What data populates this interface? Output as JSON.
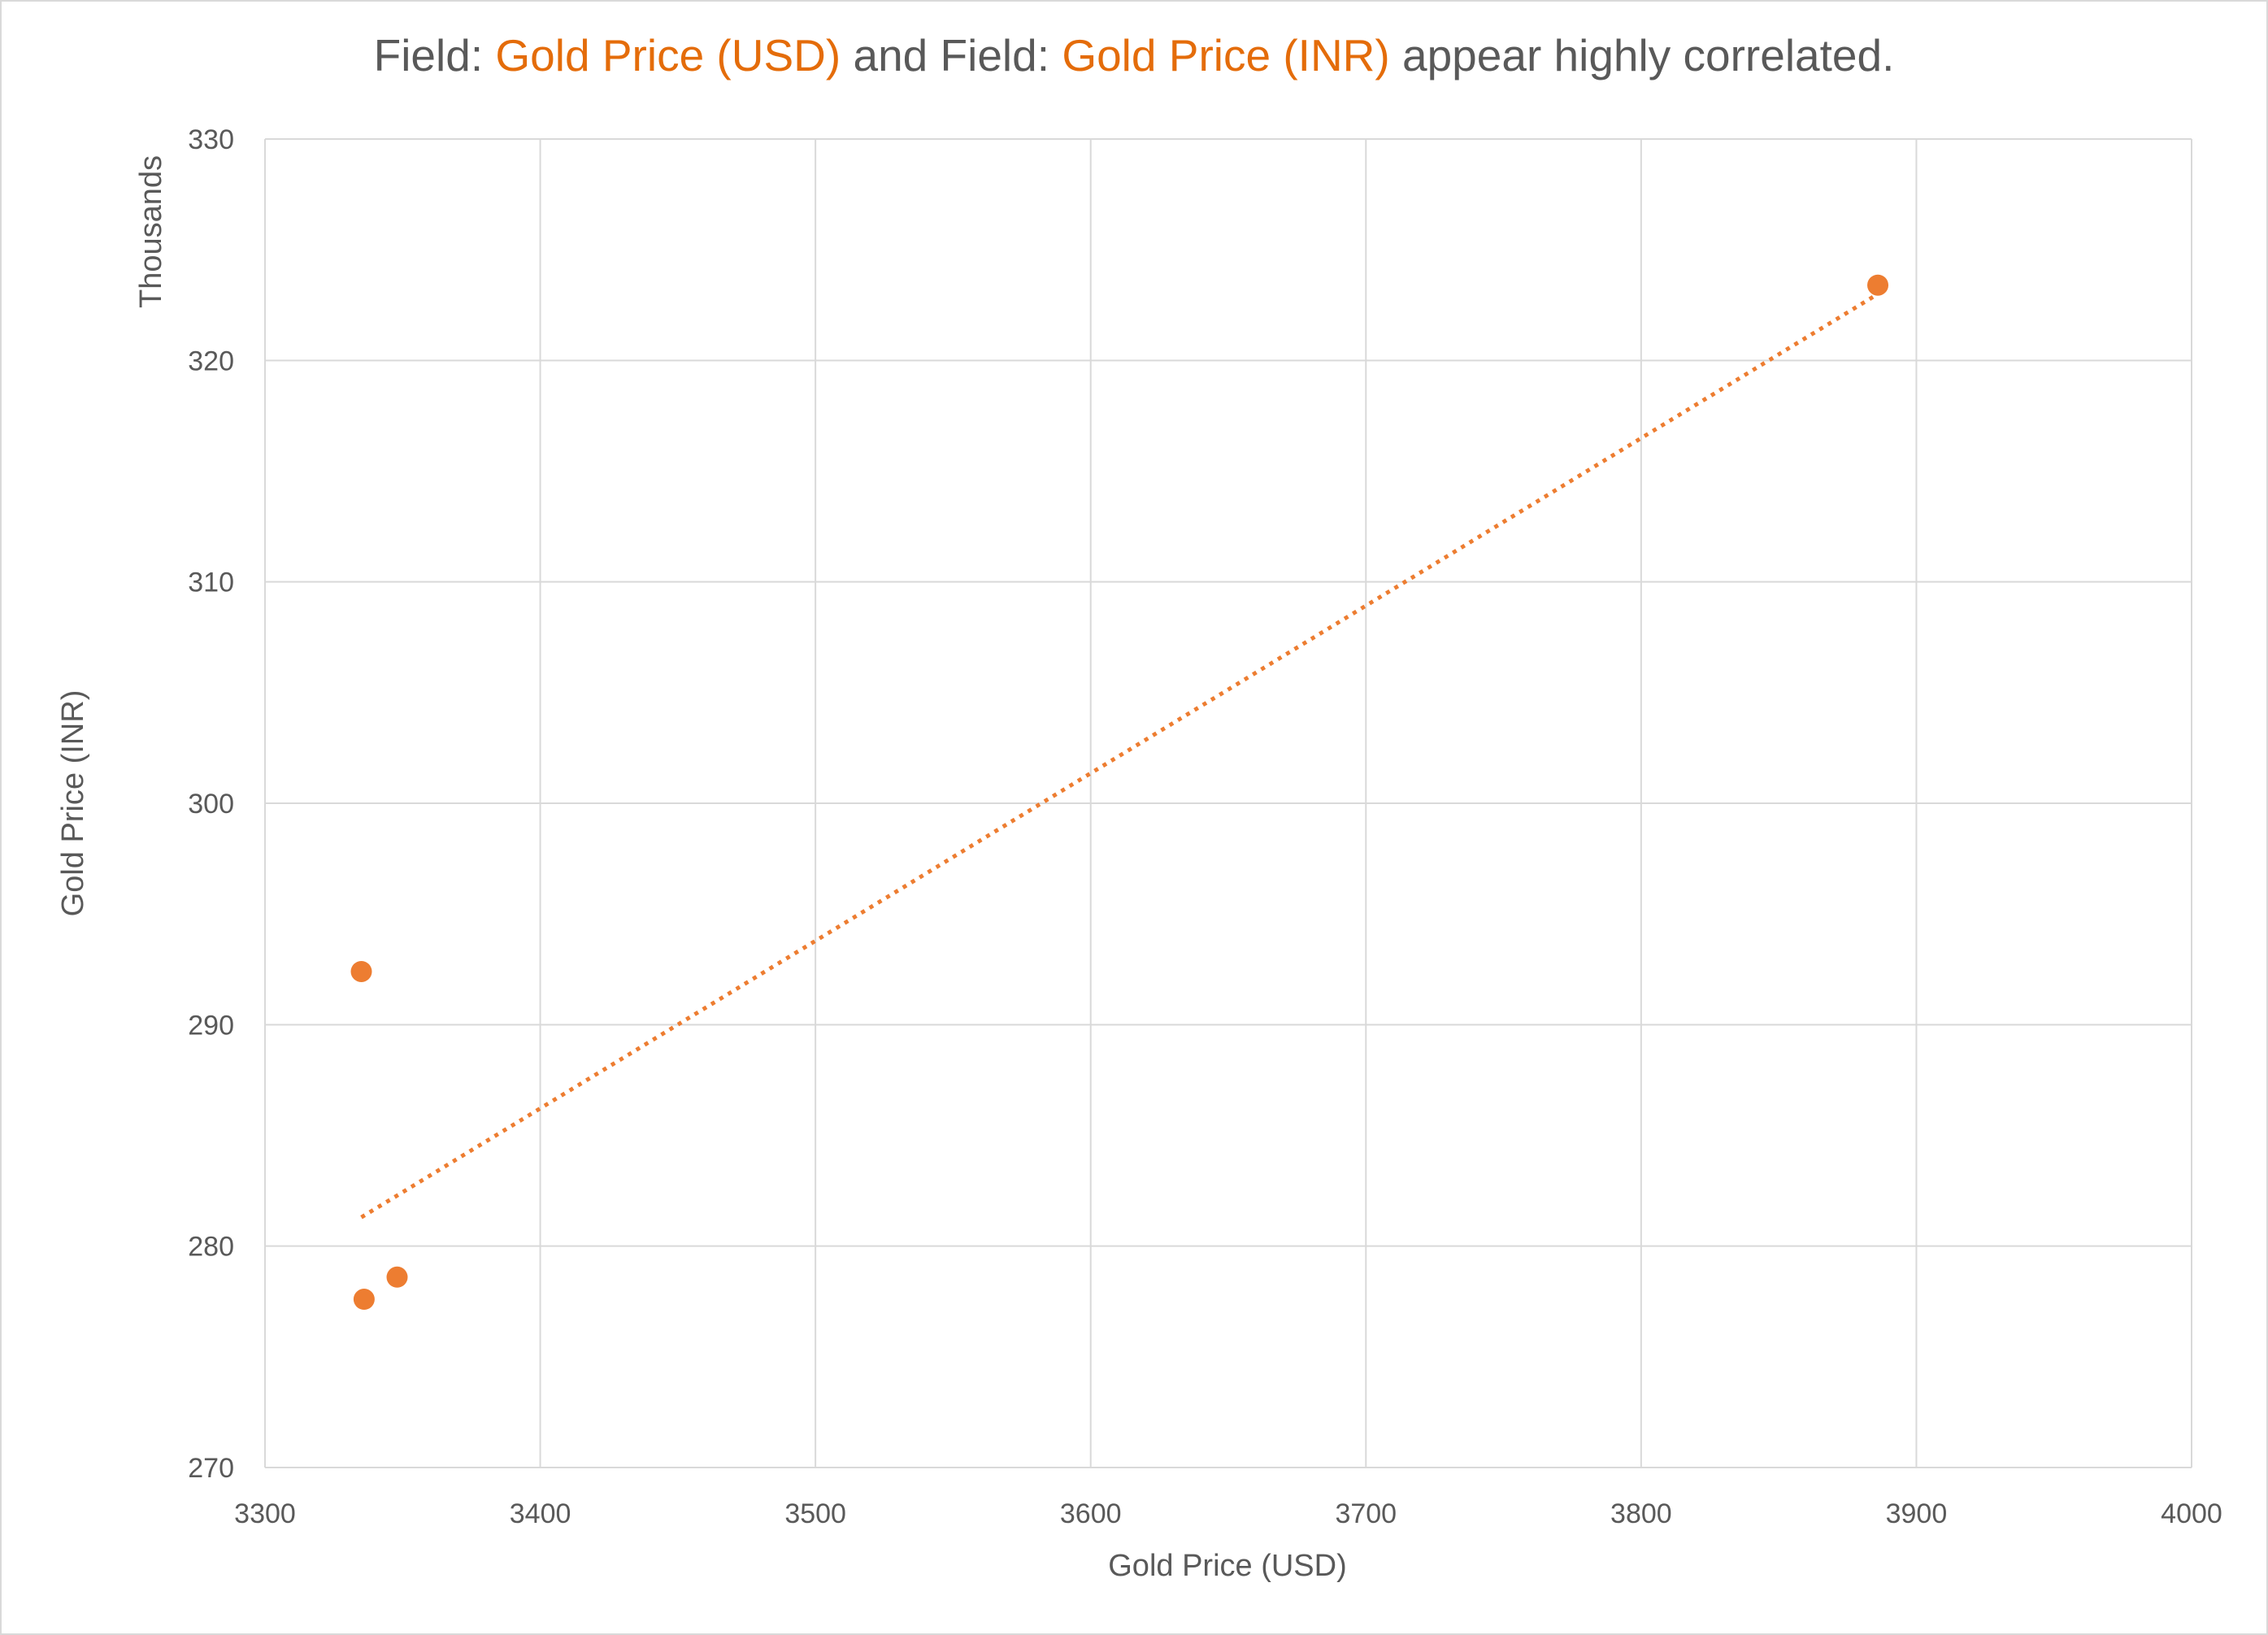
{
  "chart_data": {
    "type": "scatter",
    "title": {
      "p1": "Field: ",
      "f1": "Gold Price (USD)",
      "p2": " and Field: ",
      "f2": "Gold Price (INR)",
      "p3": " appear highly correlated."
    },
    "xlabel": "Gold Price (USD)",
    "ylabel": "Gold Price (INR)",
    "y_display_units": "Thousands",
    "xlim": [
      3300,
      4000
    ],
    "ylim": [
      270,
      330
    ],
    "x_ticks": [
      3300,
      3400,
      3500,
      3600,
      3700,
      3800,
      3900,
      4000
    ],
    "y_ticks": [
      270,
      280,
      290,
      300,
      310,
      320,
      330
    ],
    "grid": true,
    "legend": "none",
    "series": [
      {
        "points": [
          {
            "x": 3335,
            "y": 292.4
          },
          {
            "x": 3336,
            "y": 277.6
          },
          {
            "x": 3348,
            "y": 278.6
          },
          {
            "x": 3886,
            "y": 323.4
          }
        ],
        "color": "#ed7d31"
      }
    ],
    "trendline": {
      "type": "linear",
      "style": "dotted",
      "color": "#ed7d31",
      "from": {
        "x": 3335,
        "y": 281.3
      },
      "to": {
        "x": 3886,
        "y": 323.0
      }
    },
    "colors": {
      "accent": "#e46c0a",
      "text": "#595959",
      "grid": "#d9d9d9"
    }
  }
}
